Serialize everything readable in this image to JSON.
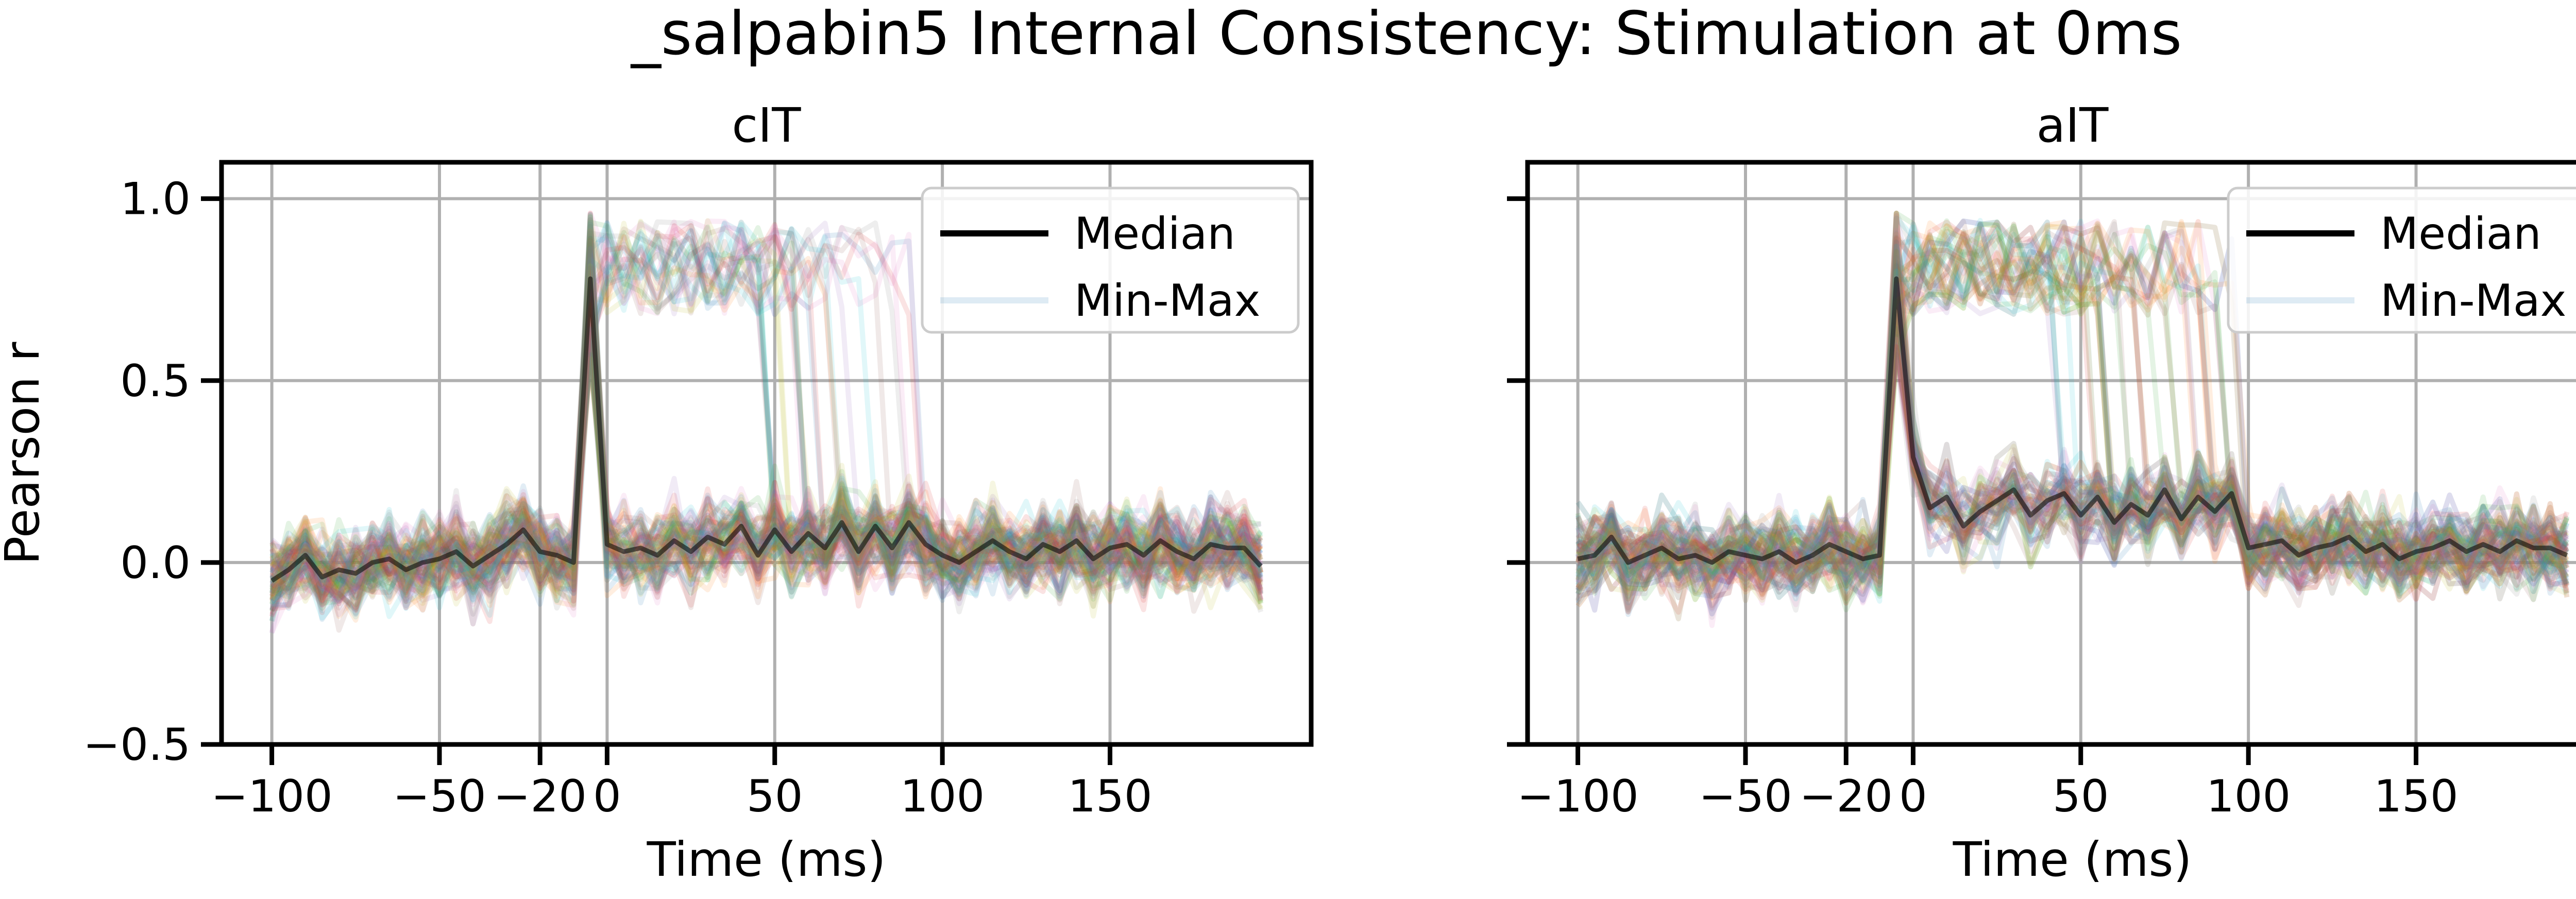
{
  "figure_title": "_salpabin5 Internal Consistency: Stimulation at 0ms",
  "colors": {
    "median": "#000000",
    "grid": "#b0b0b0",
    "palette": [
      "#1f77b4",
      "#ff7f0e",
      "#2ca02c",
      "#d62728",
      "#9467bd",
      "#8c564b",
      "#e377c2",
      "#7f7f7f",
      "#bcbd22",
      "#17becf"
    ]
  },
  "chart_data": [
    {
      "type": "line",
      "title": "cIT",
      "xlabel": "Time (ms)",
      "ylabel": "Pearson r",
      "xlim": [
        -115,
        210
      ],
      "ylim": [
        -0.5,
        1.1
      ],
      "x_ticks": [
        -100,
        -50,
        -20,
        0,
        50,
        100,
        150
      ],
      "x_tick_labels": [
        "−100",
        "−50",
        "−20",
        "0",
        "50",
        "100",
        "150"
      ],
      "y_ticks": [
        -0.5,
        0.0,
        0.5,
        1.0
      ],
      "y_tick_labels": [
        "−0.5",
        "0.0",
        "0.5",
        "1.0"
      ],
      "grid": true,
      "legend": {
        "placement": "top-right",
        "entries": [
          "Median",
          "Min-Max"
        ]
      },
      "x": [
        -100,
        -95,
        -90,
        -85,
        -80,
        -75,
        -70,
        -65,
        -60,
        -55,
        -50,
        -45,
        -40,
        -35,
        -30,
        -25,
        -20,
        -15,
        -10,
        -5,
        0,
        5,
        10,
        15,
        20,
        25,
        30,
        35,
        40,
        45,
        50,
        55,
        60,
        65,
        70,
        75,
        80,
        85,
        90,
        95,
        100,
        105,
        110,
        115,
        120,
        125,
        130,
        135,
        140,
        145,
        150,
        155,
        160,
        165,
        170,
        175,
        180,
        185,
        190,
        195
      ],
      "median": [
        -0.05,
        -0.02,
        0.02,
        -0.04,
        -0.02,
        -0.03,
        0.0,
        0.01,
        -0.02,
        0.0,
        0.01,
        0.03,
        -0.01,
        0.02,
        0.05,
        0.09,
        0.03,
        0.02,
        0.0,
        0.78,
        0.05,
        0.03,
        0.04,
        0.02,
        0.06,
        0.03,
        0.07,
        0.05,
        0.1,
        0.02,
        0.09,
        0.03,
        0.08,
        0.04,
        0.11,
        0.03,
        0.1,
        0.04,
        0.11,
        0.05,
        0.02,
        0.0,
        0.03,
        0.06,
        0.03,
        0.01,
        0.05,
        0.03,
        0.06,
        0.01,
        0.04,
        0.05,
        0.02,
        0.06,
        0.03,
        0.01,
        0.05,
        0.04,
        0.04,
        -0.01
      ],
      "min_max_band": {
        "min": -0.3,
        "max": 0.96
      },
      "neuron_traces": 110
    },
    {
      "type": "line",
      "title": "aIT",
      "xlabel": "Time (ms)",
      "ylabel": "",
      "xlim": [
        -115,
        210
      ],
      "ylim": [
        -0.5,
        1.1
      ],
      "x_ticks": [
        -100,
        -50,
        -20,
        0,
        50,
        100,
        150
      ],
      "x_tick_labels": [
        "−100",
        "−50",
        "−20",
        "0",
        "50",
        "100",
        "150"
      ],
      "y_ticks": [
        -0.5,
        0.0,
        0.5,
        1.0
      ],
      "y_tick_labels": [
        "",
        "",
        "",
        ""
      ],
      "grid": true,
      "legend": {
        "placement": "top-right",
        "entries": [
          "Median",
          "Min-Max"
        ]
      },
      "x": [
        -100,
        -95,
        -90,
        -85,
        -80,
        -75,
        -70,
        -65,
        -60,
        -55,
        -50,
        -45,
        -40,
        -35,
        -30,
        -25,
        -20,
        -15,
        -10,
        -5,
        0,
        5,
        10,
        15,
        20,
        25,
        30,
        35,
        40,
        45,
        50,
        55,
        60,
        65,
        70,
        75,
        80,
        85,
        90,
        95,
        100,
        105,
        110,
        115,
        120,
        125,
        130,
        135,
        140,
        145,
        150,
        155,
        160,
        165,
        170,
        175,
        180,
        185,
        190,
        195
      ],
      "median": [
        0.01,
        0.02,
        0.07,
        0.0,
        0.02,
        0.04,
        0.01,
        0.02,
        0.0,
        0.03,
        0.02,
        0.01,
        0.03,
        0.0,
        0.02,
        0.05,
        0.03,
        0.01,
        0.02,
        0.78,
        0.29,
        0.15,
        0.18,
        0.1,
        0.14,
        0.17,
        0.2,
        0.13,
        0.17,
        0.19,
        0.13,
        0.18,
        0.11,
        0.16,
        0.13,
        0.2,
        0.12,
        0.18,
        0.14,
        0.19,
        0.04,
        0.05,
        0.06,
        0.02,
        0.04,
        0.05,
        0.07,
        0.03,
        0.05,
        0.01,
        0.03,
        0.04,
        0.06,
        0.03,
        0.05,
        0.03,
        0.06,
        0.04,
        0.04,
        0.02
      ],
      "min_max_band": {
        "min": -0.3,
        "max": 0.96
      },
      "neuron_traces": 110
    }
  ]
}
